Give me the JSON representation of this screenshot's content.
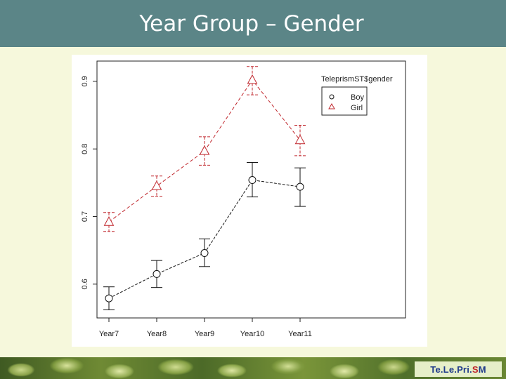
{
  "header": {
    "title": "Year Group – Gender"
  },
  "logo": {
    "part1": "Te.Le.Pri.",
    "part2": "S",
    "part3": "M"
  },
  "colors": {
    "boy": "#111111",
    "girl": "#c0272d",
    "title_bar": "#5b8587"
  },
  "chart_data": {
    "type": "line",
    "title": "",
    "xlabel": "",
    "ylabel": "",
    "categories": [
      "Year7",
      "Year8",
      "Year9",
      "Year10",
      "Year11"
    ],
    "yticks": [
      0.6,
      0.7,
      0.8,
      0.9
    ],
    "ytick_labels": [
      "0.6",
      "0.7",
      "0.8",
      "0.9"
    ],
    "ylim": [
      0.55,
      0.93
    ],
    "grid": false,
    "legend": {
      "title": "TeleprismST$gender",
      "placement": "top-right"
    },
    "series": [
      {
        "name": "Boy",
        "marker": "circle",
        "line": "dashed",
        "values": [
          0.579,
          0.615,
          0.646,
          0.754,
          0.744
        ],
        "lower": [
          0.562,
          0.595,
          0.626,
          0.729,
          0.715
        ],
        "upper": [
          0.596,
          0.635,
          0.667,
          0.78,
          0.772
        ]
      },
      {
        "name": "Girl",
        "marker": "triangle",
        "line": "dashed",
        "values": [
          0.692,
          0.745,
          0.797,
          0.902,
          0.813
        ],
        "lower": [
          0.678,
          0.73,
          0.776,
          0.88,
          0.79
        ],
        "upper": [
          0.706,
          0.76,
          0.818,
          0.922,
          0.835
        ]
      }
    ]
  }
}
